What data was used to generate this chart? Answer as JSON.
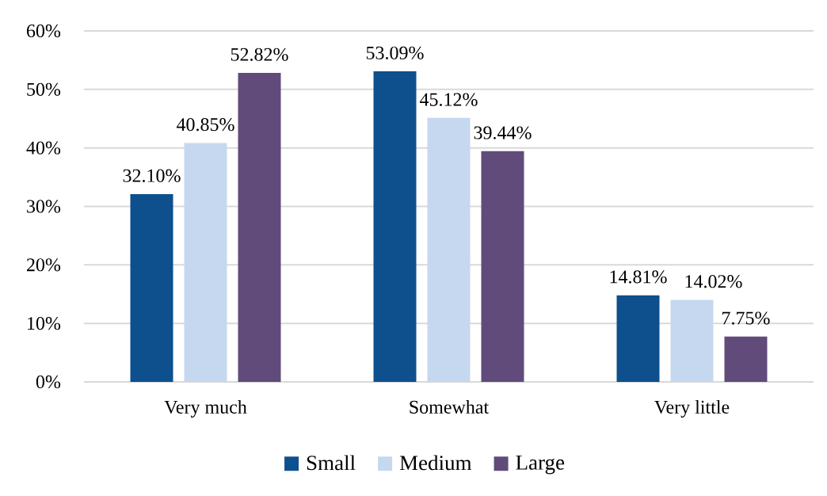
{
  "chart_data": {
    "type": "bar",
    "categories": [
      "Very much",
      "Somewhat",
      "Very little"
    ],
    "series": [
      {
        "name": "Small",
        "color": "#0d508d",
        "values": [
          32.1,
          53.09,
          14.81
        ],
        "value_labels": [
          "32.10%",
          "53.09%",
          "14.81%"
        ]
      },
      {
        "name": "Medium",
        "color": "#c6d8f0",
        "values": [
          40.85,
          45.12,
          14.02
        ],
        "value_labels": [
          "40.85%",
          "45.12%",
          "14.02%"
        ]
      },
      {
        "name": "Large",
        "color": "#614b7b",
        "values": [
          52.82,
          39.44,
          7.75
        ],
        "value_labels": [
          "52.82%",
          "39.44%",
          "7.75%"
        ]
      }
    ],
    "ylim": [
      0,
      60
    ],
    "yticks": [
      {
        "value": 0,
        "label": "0%"
      },
      {
        "value": 10,
        "label": "10%"
      },
      {
        "value": 20,
        "label": "20%"
      },
      {
        "value": 30,
        "label": "30%"
      },
      {
        "value": 40,
        "label": "40%"
      },
      {
        "value": 50,
        "label": "50%"
      },
      {
        "value": 60,
        "label": "60%"
      }
    ],
    "grid": "y",
    "legend": "bottom"
  }
}
